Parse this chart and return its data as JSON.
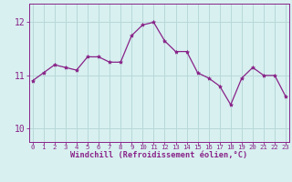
{
  "x": [
    0,
    1,
    2,
    3,
    4,
    5,
    6,
    7,
    8,
    9,
    10,
    11,
    12,
    13,
    14,
    15,
    16,
    17,
    18,
    19,
    20,
    21,
    22,
    23
  ],
  "y": [
    10.9,
    11.05,
    11.2,
    11.15,
    11.1,
    11.35,
    11.35,
    11.25,
    11.25,
    11.75,
    11.95,
    12.0,
    11.65,
    11.45,
    11.45,
    11.05,
    10.95,
    10.8,
    10.45,
    10.95,
    11.15,
    11.0,
    11.0,
    10.6
  ],
  "line_color": "#882288",
  "marker": "*",
  "marker_size": 3,
  "bg_color": "#d8f0f0",
  "grid_color": "#b8d8d8",
  "xlabel": "Windchill (Refroidissement éolien,°C)",
  "xticks": [
    0,
    1,
    2,
    3,
    4,
    5,
    6,
    7,
    8,
    9,
    10,
    11,
    12,
    13,
    14,
    15,
    16,
    17,
    18,
    19,
    20,
    21,
    22,
    23
  ],
  "yticks": [
    10,
    11,
    12
  ],
  "ylim": [
    9.75,
    12.35
  ],
  "xlim": [
    -0.3,
    23.3
  ],
  "tick_color": "#882288",
  "label_color": "#882288",
  "xtick_fontsize": 5.2,
  "ytick_fontsize": 7.0,
  "xlabel_fontsize": 6.2
}
